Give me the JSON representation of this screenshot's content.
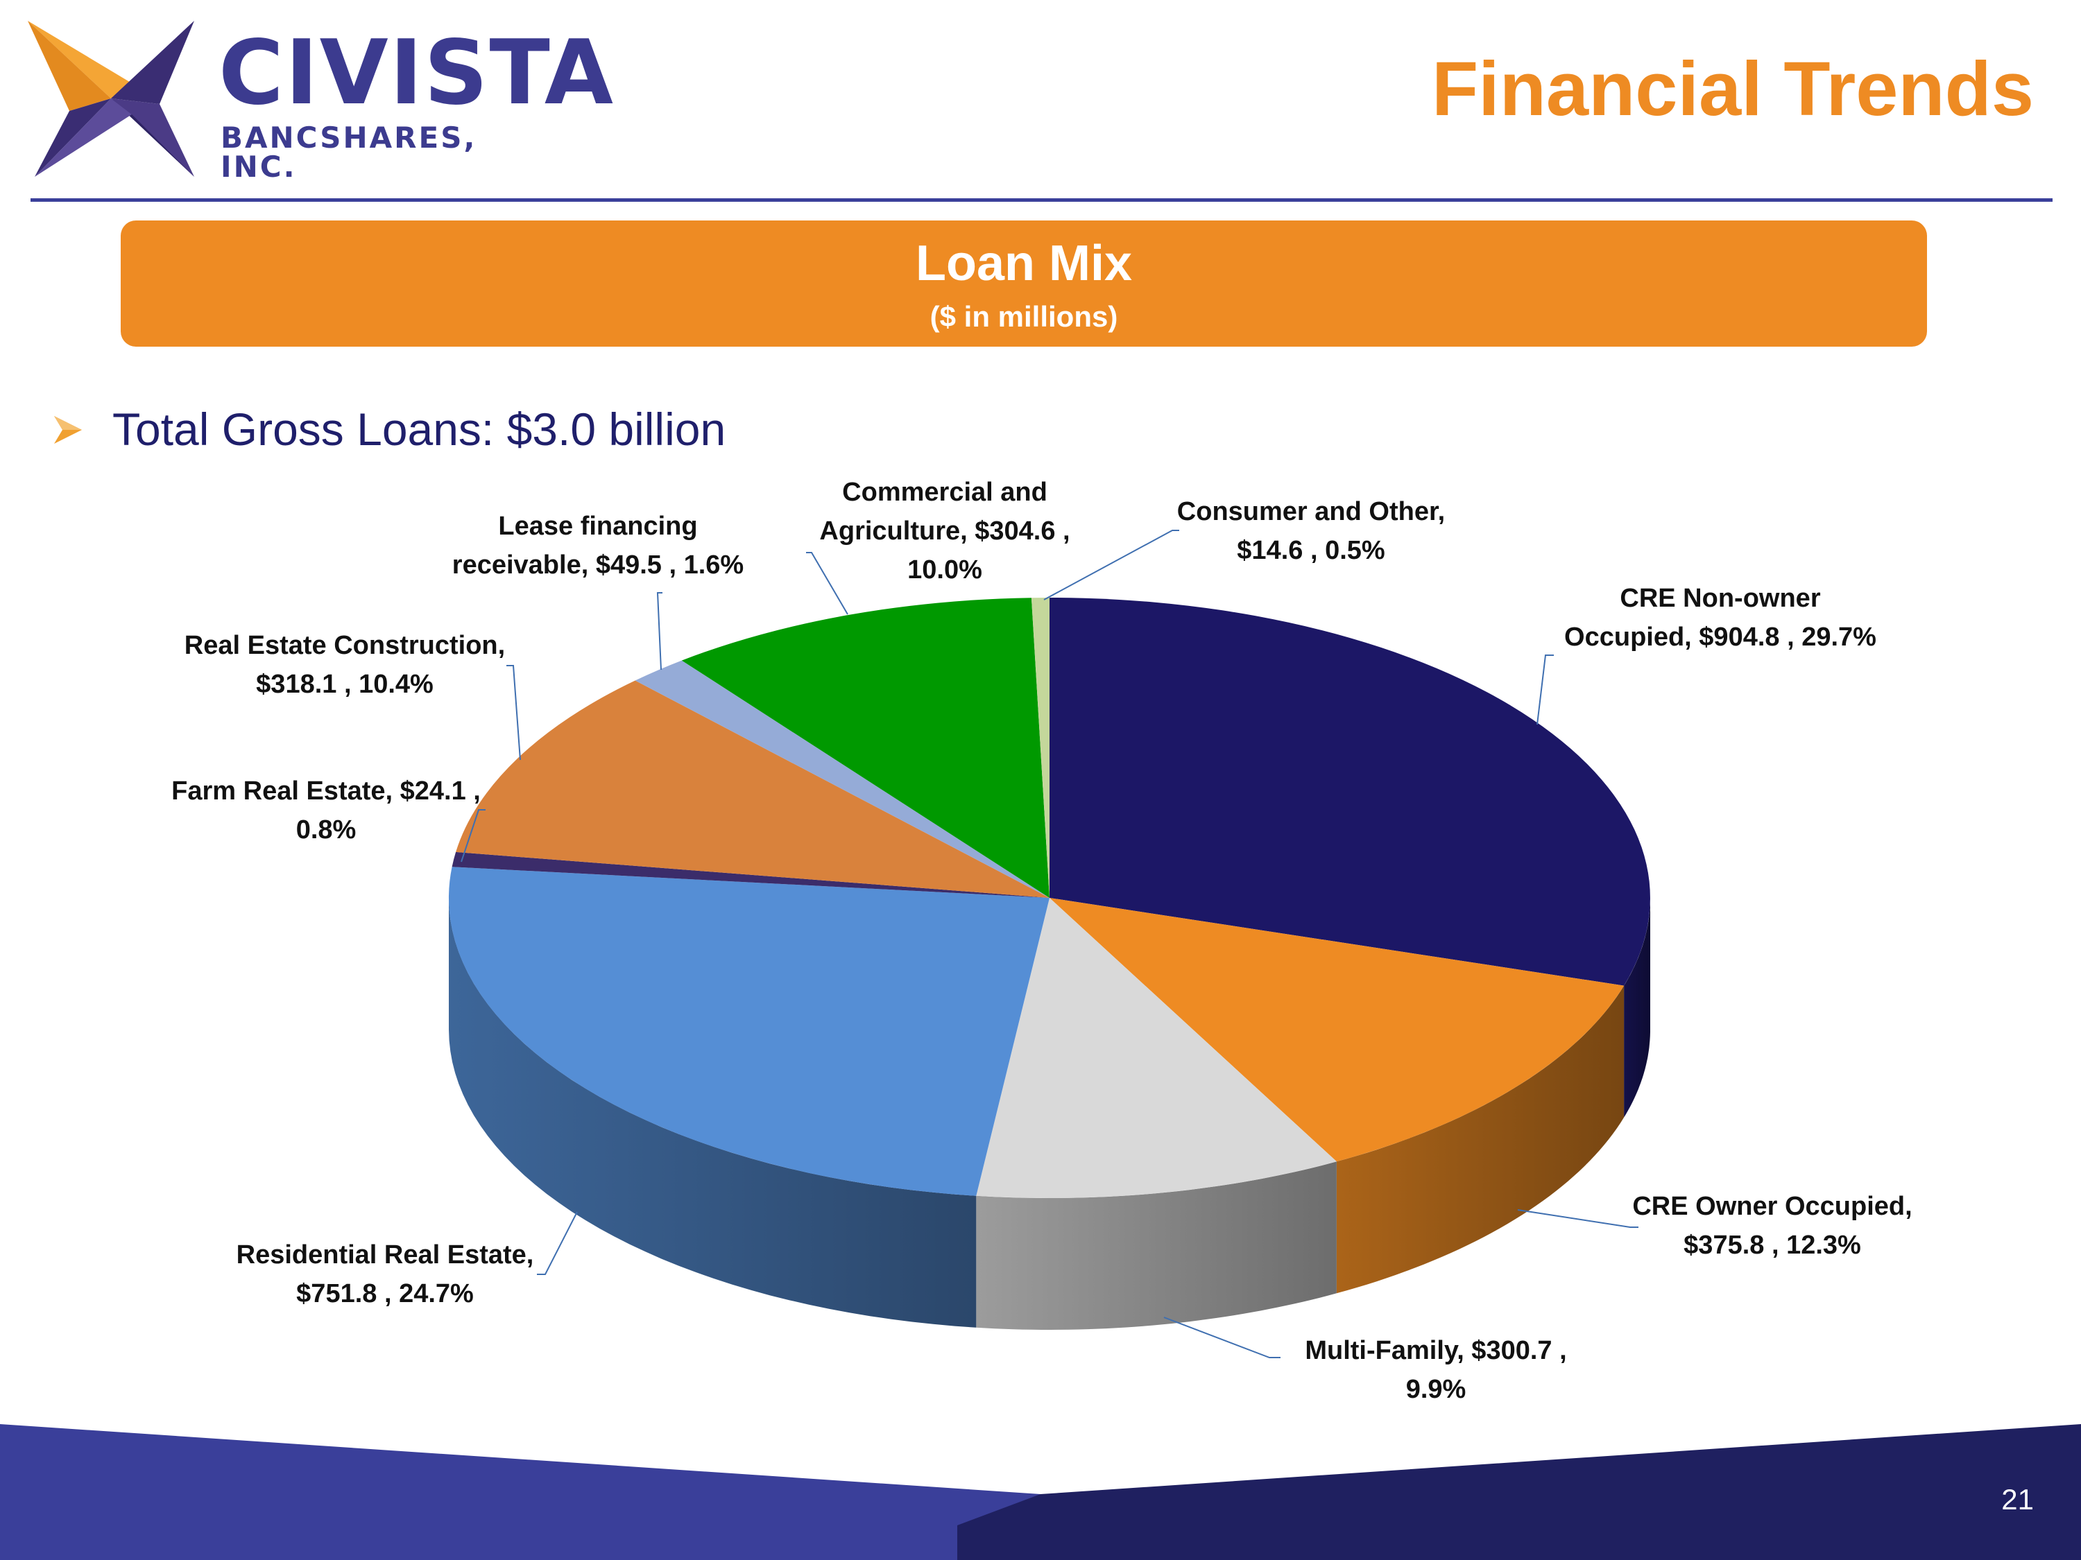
{
  "header": {
    "logo": {
      "name": "CIVISTA",
      "subtitle": "BANCSHARES, INC."
    },
    "title": "Financial Trends"
  },
  "banner": {
    "title": "Loan Mix",
    "subtitle": "($ in millions)"
  },
  "bullet": {
    "text": "Total Gross Loans: $3.0 billion"
  },
  "colors": {
    "accent_orange": "#ee8b23",
    "brand_navy": "#3c3b8f",
    "footer_light": "#3a3f9a",
    "footer_dark": "#1f2060"
  },
  "chart_data": {
    "type": "pie",
    "style": "3d",
    "title": "",
    "slices": [
      {
        "name": "CRE Non-owner Occupied",
        "value": 904.8,
        "percent": "29.7%",
        "label": [
          "CRE Non-owner",
          "Occupied, $904.8 , 29.7%"
        ],
        "color": "#1c1766"
      },
      {
        "name": "CRE Owner Occupied",
        "value": 375.8,
        "percent": "12.3%",
        "label": [
          "CRE Owner Occupied,",
          "$375.8 , 12.3%"
        ],
        "color": "#ee8b23"
      },
      {
        "name": "Multi-Family",
        "value": 300.7,
        "percent": "9.9%",
        "label": [
          "Multi-Family, $300.7 ,",
          "9.9%"
        ],
        "color": "#d9d9d9"
      },
      {
        "name": "Residential Real Estate",
        "value": 751.8,
        "percent": "24.7%",
        "label": [
          "Residential Real Estate,",
          "$751.8 , 24.7%"
        ],
        "color": "#558ed5"
      },
      {
        "name": "Farm Real Estate",
        "value": 24.1,
        "percent": "0.8%",
        "label": [
          "Farm Real Estate, $24.1 ,",
          "0.8%"
        ],
        "color": "#3b2c6a"
      },
      {
        "name": "Real Estate Construction",
        "value": 318.1,
        "percent": "10.4%",
        "label": [
          "Real Estate Construction,",
          "$318.1 , 10.4%"
        ],
        "color": "#d9823c"
      },
      {
        "name": "Lease financing receivable",
        "value": 49.5,
        "percent": "1.6%",
        "label": [
          "Lease financing",
          "receivable, $49.5 , 1.6%"
        ],
        "color": "#95abd7"
      },
      {
        "name": "Commercial and Agriculture",
        "value": 304.6,
        "percent": "10.0%",
        "label": [
          "Commercial and",
          "Agriculture, $304.6 ,",
          "10.0%"
        ],
        "color": "#009900"
      },
      {
        "name": "Consumer and Other",
        "value": 14.6,
        "percent": "0.5%",
        "label": [
          "Consumer and Other,",
          "$14.6 , 0.5%"
        ],
        "color": "#c4d79b"
      }
    ]
  },
  "footer": {
    "page_number": "21"
  }
}
